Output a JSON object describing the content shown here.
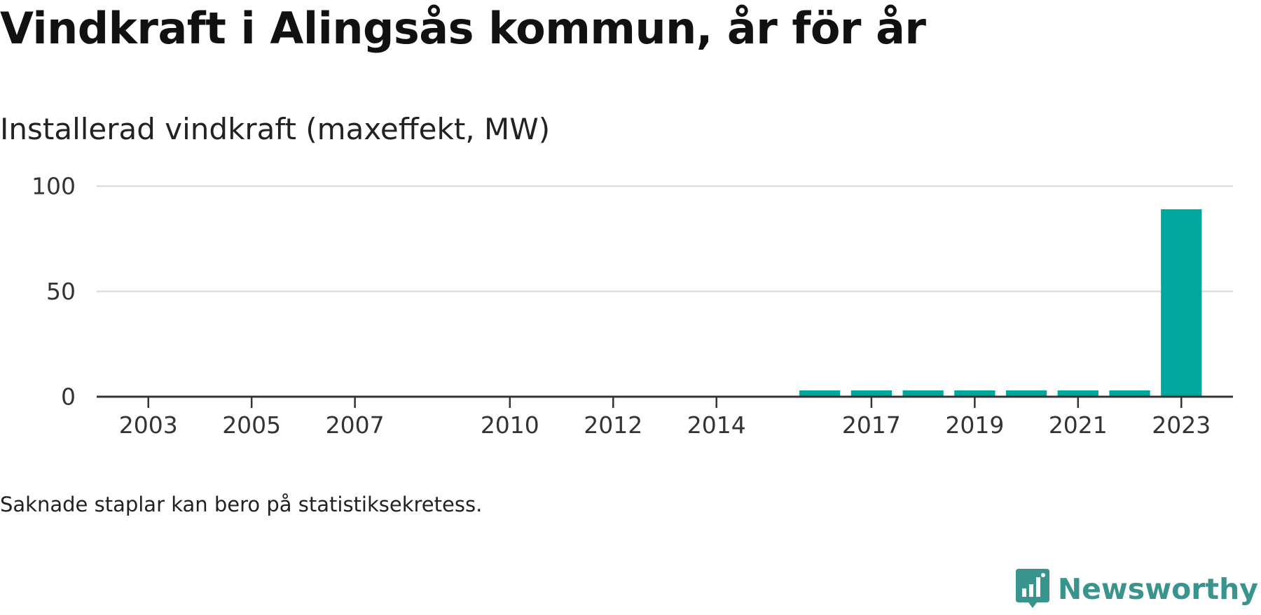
{
  "title": "Vindkraft i Alingsås kommun, år för år",
  "subtitle": "Installerad vindkraft (maxeffekt, MW)",
  "note": "Saknade staplar kan bero på statistiksekretess.",
  "brand": {
    "name": "Newsworthy",
    "icon": "newsworthy-logo-icon",
    "color": "#3a948e"
  },
  "colors": {
    "bar": "#00a79d",
    "grid": "#dddddd",
    "axis": "#333333"
  },
  "chart_data": {
    "type": "bar",
    "title": "Installerad vindkraft (maxeffekt, MW)",
    "xlabel": "",
    "ylabel": "",
    "x_domain": [
      2002,
      2024
    ],
    "ylim": [
      0,
      100
    ],
    "yticks": [
      0,
      50,
      100
    ],
    "xticks": [
      2003,
      2005,
      2007,
      2010,
      2012,
      2014,
      2017,
      2019,
      2021,
      2023
    ],
    "grid": true,
    "categories": [
      2016,
      2017,
      2018,
      2019,
      2020,
      2021,
      2022,
      2023
    ],
    "values": [
      3,
      3,
      3,
      3,
      3,
      3,
      3,
      89
    ]
  }
}
